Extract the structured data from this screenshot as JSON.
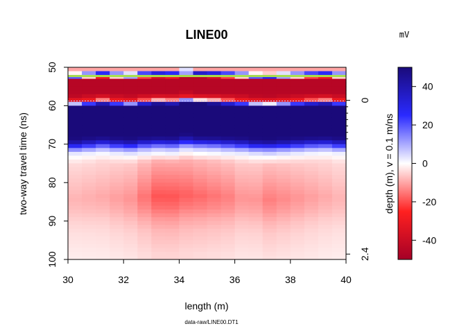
{
  "chart_data": {
    "type": "heatmap",
    "title": "LINE00",
    "xlabel": "length (m)",
    "ylabel": "two-way travel time (ns)",
    "ylabel_right": "depth (m),   v = 0.1 m/ns",
    "footer": "data-raw/LINE00.DT1",
    "xlim": [
      30,
      40
    ],
    "ylim": [
      100,
      50
    ],
    "x_ticks": [
      30,
      32,
      34,
      36,
      38,
      40
    ],
    "y_ticks": [
      50,
      60,
      70,
      80,
      90,
      100
    ],
    "depth_ticks_labeled": [
      {
        "depth": 0,
        "t": 58.6
      },
      {
        "depth": 2.4,
        "t": 98.6
      }
    ],
    "colorbar": {
      "unit": "mV",
      "limits": [
        -50,
        50
      ],
      "ticks": [
        40,
        20,
        0,
        -20,
        -40
      ],
      "colors": {
        "neg_max": "#a50026",
        "neg_mid": "#ff2020",
        "zero": "#ffffff",
        "pos_mid": "#2a2aff",
        "pos_max": "#1a0a7a"
      }
    },
    "time_samples_ns": [
      51,
      52,
      53,
      55,
      57,
      58.5,
      60,
      62,
      64,
      66,
      68,
      69,
      70,
      71,
      72,
      73,
      75,
      78,
      81,
      84,
      87,
      90,
      93,
      96,
      99
    ],
    "time_profile_mV": [
      -10,
      35,
      -45,
      -45,
      -45,
      -30,
      50,
      50,
      50,
      50,
      50,
      45,
      30,
      15,
      5,
      0,
      -6,
      -8,
      -10,
      -12,
      -10,
      -7,
      -5,
      -4,
      -3
    ],
    "traces_x_m": [
      30,
      30.5,
      31,
      31.5,
      32,
      32.5,
      33,
      33.5,
      34,
      34.5,
      35,
      35.5,
      36,
      36.5,
      37,
      37.5,
      38,
      38.5,
      39,
      39.5
    ],
    "trace_offsets_ns": [
      0.3,
      0,
      -0.3,
      0,
      0.2,
      -0.2,
      -0.4,
      -0.3,
      -0.8,
      -0.5,
      -0.4,
      -0.2,
      0,
      0.3,
      0.4,
      0.2,
      0,
      -0.2,
      -0.3,
      0
    ],
    "trace_amp_scale": [
      0.7,
      0.75,
      0.8,
      0.9,
      1.0,
      1.3,
      1.6,
      1.6,
      1.5,
      1.4,
      1.3,
      1.2,
      1.0,
      1.0,
      1.2,
      1.1,
      1.0,
      0.9,
      0.8,
      0.7
    ]
  }
}
